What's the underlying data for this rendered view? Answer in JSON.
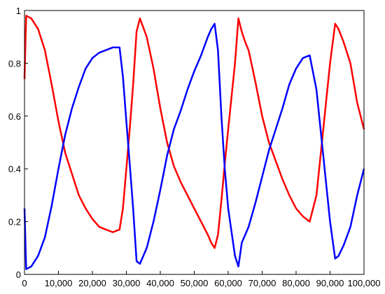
{
  "chart_data": {
    "type": "line",
    "title": "",
    "xlabel": "",
    "ylabel": "",
    "xlim": [
      0,
      100000
    ],
    "ylim": [
      0,
      1
    ],
    "grid": false,
    "x_ticks": [
      0,
      10000,
      20000,
      30000,
      40000,
      50000,
      60000,
      70000,
      80000,
      90000,
      100000
    ],
    "x_tick_labels": [
      "0",
      "10,000",
      "20,000",
      "30,000",
      "40,000",
      "50,000",
      "60,000",
      "70,000",
      "80,000",
      "90,000",
      "100,000"
    ],
    "y_ticks": [
      0,
      0.2,
      0.4,
      0.6,
      0.8,
      1
    ],
    "y_tick_labels": [
      "0",
      "0.2",
      "0.4",
      "0.6",
      "0.8",
      "1"
    ],
    "series": [
      {
        "color": "#ff0000",
        "x": [
          0,
          500,
          2000,
          4000,
          6000,
          8000,
          10000,
          12000,
          14000,
          16000,
          18000,
          20000,
          22000,
          24000,
          26000,
          28000,
          29000,
          30000,
          31000,
          32000,
          33000,
          34000,
          36000,
          38000,
          40000,
          42000,
          44000,
          46000,
          48000,
          50000,
          52000,
          54000,
          55000,
          56000,
          57000,
          58000,
          59000,
          60000,
          62000,
          63000,
          64000,
          65000,
          66000,
          68000,
          70000,
          72000,
          74000,
          76000,
          78000,
          80000,
          82000,
          84000,
          86000,
          88000,
          90000,
          91500,
          92500,
          94000,
          96000,
          98000,
          100000
        ],
        "y": [
          0.74,
          0.98,
          0.97,
          0.93,
          0.85,
          0.72,
          0.58,
          0.46,
          0.38,
          0.3,
          0.25,
          0.21,
          0.18,
          0.17,
          0.16,
          0.17,
          0.25,
          0.4,
          0.55,
          0.72,
          0.92,
          0.97,
          0.9,
          0.78,
          0.63,
          0.5,
          0.41,
          0.35,
          0.3,
          0.25,
          0.2,
          0.15,
          0.12,
          0.1,
          0.15,
          0.28,
          0.42,
          0.55,
          0.8,
          0.97,
          0.92,
          0.88,
          0.85,
          0.73,
          0.6,
          0.5,
          0.43,
          0.36,
          0.3,
          0.25,
          0.22,
          0.2,
          0.3,
          0.55,
          0.8,
          0.95,
          0.93,
          0.88,
          0.8,
          0.65,
          0.55
        ]
      },
      {
        "color": "#0000ff",
        "x": [
          0,
          500,
          2000,
          4000,
          6000,
          8000,
          10000,
          12000,
          14000,
          16000,
          18000,
          20000,
          22000,
          24000,
          26000,
          28000,
          29000,
          30000,
          31000,
          32000,
          33000,
          34000,
          36000,
          38000,
          40000,
          42000,
          44000,
          46000,
          48000,
          50000,
          52000,
          54000,
          55000,
          56000,
          57000,
          58000,
          59000,
          60000,
          62000,
          63000,
          64000,
          65000,
          66000,
          68000,
          70000,
          72000,
          74000,
          76000,
          78000,
          80000,
          82000,
          84000,
          86000,
          88000,
          90000,
          91500,
          92500,
          94000,
          96000,
          98000,
          100000
        ],
        "y": [
          0.25,
          0.02,
          0.03,
          0.07,
          0.14,
          0.26,
          0.4,
          0.53,
          0.63,
          0.71,
          0.78,
          0.82,
          0.84,
          0.85,
          0.86,
          0.86,
          0.75,
          0.58,
          0.42,
          0.25,
          0.05,
          0.04,
          0.1,
          0.2,
          0.32,
          0.45,
          0.55,
          0.62,
          0.7,
          0.77,
          0.83,
          0.9,
          0.93,
          0.95,
          0.85,
          0.6,
          0.4,
          0.25,
          0.07,
          0.03,
          0.12,
          0.15,
          0.18,
          0.27,
          0.37,
          0.47,
          0.55,
          0.63,
          0.72,
          0.78,
          0.82,
          0.83,
          0.7,
          0.45,
          0.2,
          0.06,
          0.07,
          0.11,
          0.18,
          0.3,
          0.4
        ]
      }
    ]
  }
}
